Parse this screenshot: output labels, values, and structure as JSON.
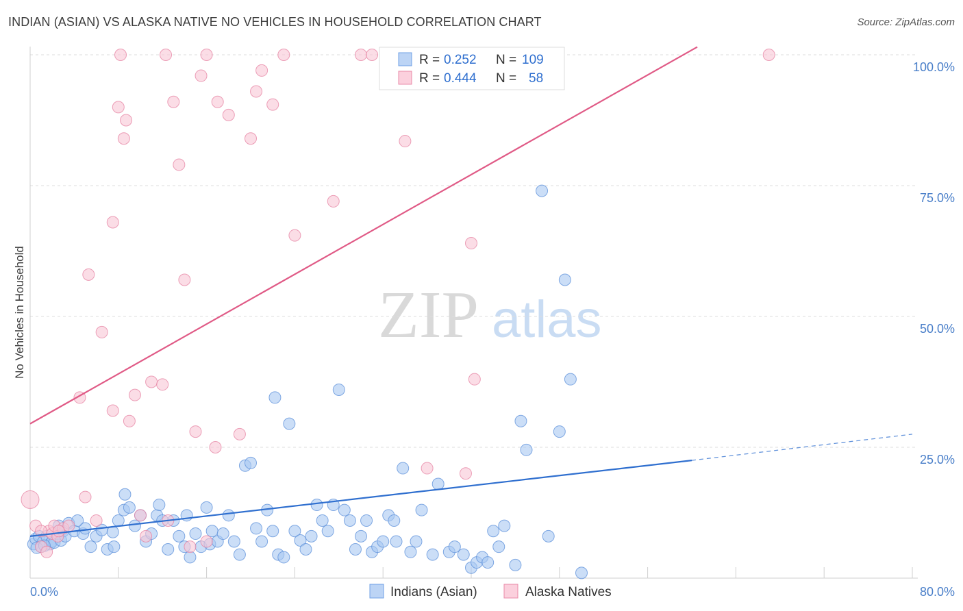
{
  "header": {
    "title": "INDIAN (ASIAN) VS ALASKA NATIVE NO VEHICLES IN HOUSEHOLD CORRELATION CHART",
    "source": "Source: ZipAtlas.com"
  },
  "watermark": {
    "part1": "ZIP",
    "part2": "atlas"
  },
  "stats": {
    "r_label": "R =",
    "n_label": "N =",
    "rows": [
      {
        "r": "0.252",
        "n": "109",
        "color": "#6fa0e6",
        "fill": "#bcd4f5"
      },
      {
        "r": "0.444",
        "n": "58",
        "color": "#ea8aa8",
        "fill": "#fbd0dd"
      }
    ]
  },
  "chart_data": {
    "type": "scatter",
    "title": "INDIAN (ASIAN) VS ALASKA NATIVE NO VEHICLES IN HOUSEHOLD CORRELATION CHART",
    "ylabel": "No Vehicles in Household",
    "xlim": [
      0,
      80
    ],
    "ylim": [
      0,
      100
    ],
    "x_tick_labels": [
      "0.0%",
      "80.0%"
    ],
    "y_tick_labels": [
      "100.0%",
      "75.0%",
      "50.0%",
      "25.0%"
    ],
    "y_ticks": [
      100,
      75,
      50,
      25
    ],
    "x_minor_ticks": [
      0,
      8,
      16,
      24,
      32,
      40,
      48,
      56,
      64,
      72,
      80
    ],
    "grid": true,
    "legend_position": "bottom",
    "series": [
      {
        "name": "Indians (Asian)",
        "color": "#5b8fd9",
        "fill": "#a9c8f2",
        "trend": {
          "x": [
            0,
            60
          ],
          "y": [
            8,
            22.5
          ],
          "dashed_to": [
            80,
            27.5
          ],
          "color": "#2f6fcf"
        },
        "points": [
          [
            0.3,
            6.5
          ],
          [
            0.5,
            7.5
          ],
          [
            0.8,
            8
          ],
          [
            1,
            6
          ],
          [
            1.2,
            7
          ],
          [
            1.5,
            8
          ],
          [
            1.8,
            6.5
          ],
          [
            2,
            7
          ],
          [
            2.2,
            6.8
          ],
          [
            2.5,
            8.5
          ],
          [
            2.8,
            7.2
          ],
          [
            3,
            9
          ],
          [
            0.6,
            5.8
          ],
          [
            1.3,
            6.2
          ],
          [
            2.6,
            10
          ],
          [
            3.2,
            8
          ],
          [
            3.5,
            10.5
          ],
          [
            4,
            9
          ],
          [
            4.3,
            11
          ],
          [
            4.8,
            8.5
          ],
          [
            5,
            9.5
          ],
          [
            5.5,
            6
          ],
          [
            6,
            8
          ],
          [
            6.5,
            9.2
          ],
          [
            7,
            5.5
          ],
          [
            7.5,
            8.8
          ],
          [
            7.6,
            6
          ],
          [
            8,
            11
          ],
          [
            8.5,
            13
          ],
          [
            8.6,
            16
          ],
          [
            9,
            13.5
          ],
          [
            9.5,
            10
          ],
          [
            10,
            12
          ],
          [
            10.5,
            7
          ],
          [
            11,
            8.5
          ],
          [
            11.5,
            12
          ],
          [
            11.7,
            14
          ],
          [
            12,
            11
          ],
          [
            12.5,
            5.5
          ],
          [
            13,
            11
          ],
          [
            13.5,
            8
          ],
          [
            14,
            6
          ],
          [
            14.2,
            12
          ],
          [
            14.5,
            4
          ],
          [
            15,
            8.5
          ],
          [
            15.5,
            6
          ],
          [
            16,
            13.5
          ],
          [
            16.3,
            6.5
          ],
          [
            16.5,
            9
          ],
          [
            17,
            7
          ],
          [
            17.5,
            8.5
          ],
          [
            18,
            12
          ],
          [
            18.5,
            7
          ],
          [
            19,
            4.5
          ],
          [
            19.5,
            21.5
          ],
          [
            20,
            22
          ],
          [
            20.5,
            9.5
          ],
          [
            21,
            7
          ],
          [
            21.5,
            13
          ],
          [
            22,
            9
          ],
          [
            22.2,
            34.5
          ],
          [
            22.5,
            4.5
          ],
          [
            23,
            4
          ],
          [
            23.5,
            29.5
          ],
          [
            24,
            9
          ],
          [
            24.5,
            7.2
          ],
          [
            25,
            5.5
          ],
          [
            25.5,
            8
          ],
          [
            26,
            14
          ],
          [
            26.5,
            11
          ],
          [
            27,
            9
          ],
          [
            27.5,
            14
          ],
          [
            28,
            36
          ],
          [
            28.5,
            13
          ],
          [
            29,
            11
          ],
          [
            29.5,
            5.5
          ],
          [
            30,
            8
          ],
          [
            30.5,
            11
          ],
          [
            31,
            5
          ],
          [
            31.5,
            6
          ],
          [
            32,
            7
          ],
          [
            32.5,
            12
          ],
          [
            33,
            11
          ],
          [
            33.2,
            7
          ],
          [
            33.8,
            21
          ],
          [
            34.5,
            5
          ],
          [
            35,
            7
          ],
          [
            35.5,
            13
          ],
          [
            36.5,
            4.5
          ],
          [
            37,
            18
          ],
          [
            38,
            5
          ],
          [
            38.5,
            6
          ],
          [
            39.3,
            4.5
          ],
          [
            40,
            2
          ],
          [
            40.5,
            3
          ],
          [
            41,
            4
          ],
          [
            41.5,
            3
          ],
          [
            42,
            9
          ],
          [
            42.5,
            6
          ],
          [
            43,
            10
          ],
          [
            44,
            2.5
          ],
          [
            44.5,
            30
          ],
          [
            45,
            24.5
          ],
          [
            46.4,
            74
          ],
          [
            47,
            8
          ],
          [
            48,
            28
          ],
          [
            48.5,
            57
          ],
          [
            49,
            38
          ],
          [
            50,
            1
          ]
        ]
      },
      {
        "name": "Alaska Natives",
        "color": "#e681a2",
        "fill": "#f9c6d6",
        "trend": {
          "x": [
            0,
            60.5
          ],
          "y": [
            29.5,
            101.5
          ],
          "color": "#e05a86"
        },
        "points": [
          [
            0,
            15
          ],
          [
            0.5,
            10
          ],
          [
            1,
            6
          ],
          [
            1.5,
            5
          ],
          [
            1.7,
            9
          ],
          [
            2,
            8.5
          ],
          [
            2.2,
            10
          ],
          [
            2.5,
            8
          ],
          [
            3,
            9.5
          ],
          [
            3.5,
            10
          ],
          [
            4.5,
            34.5
          ],
          [
            5,
            15.5
          ],
          [
            6,
            11
          ],
          [
            6.5,
            47
          ],
          [
            7.5,
            32
          ],
          [
            8,
            90
          ],
          [
            8.5,
            84
          ],
          [
            8.7,
            87.5
          ],
          [
            9,
            30
          ],
          [
            9.5,
            35
          ],
          [
            10,
            12
          ],
          [
            10.5,
            8
          ],
          [
            11,
            37.5
          ],
          [
            12,
            37
          ],
          [
            12.5,
            11
          ],
          [
            13,
            91
          ],
          [
            13.5,
            79
          ],
          [
            14,
            57
          ],
          [
            14.5,
            6
          ],
          [
            15,
            28
          ],
          [
            15.5,
            96
          ],
          [
            16,
            7
          ],
          [
            16.8,
            25
          ],
          [
            17,
            91
          ],
          [
            18,
            88.5
          ],
          [
            19,
            27.5
          ],
          [
            20,
            84
          ],
          [
            20.5,
            93
          ],
          [
            21,
            97
          ],
          [
            22,
            90.5
          ],
          [
            23,
            100
          ],
          [
            24,
            65.5
          ],
          [
            27.5,
            72
          ],
          [
            30,
            100
          ],
          [
            31,
            100
          ],
          [
            34,
            83.5
          ],
          [
            36,
            21
          ],
          [
            39.5,
            20
          ],
          [
            40,
            64
          ],
          [
            40.3,
            38
          ],
          [
            67,
            100
          ],
          [
            5.3,
            58
          ],
          [
            7.5,
            68
          ],
          [
            8.2,
            100
          ],
          [
            16,
            100
          ],
          [
            12.3,
            100
          ],
          [
            1,
            9
          ],
          [
            2.6,
            9
          ]
        ]
      }
    ]
  },
  "legend": {
    "items": [
      "Indians (Asian)",
      "Alaska Natives"
    ]
  }
}
